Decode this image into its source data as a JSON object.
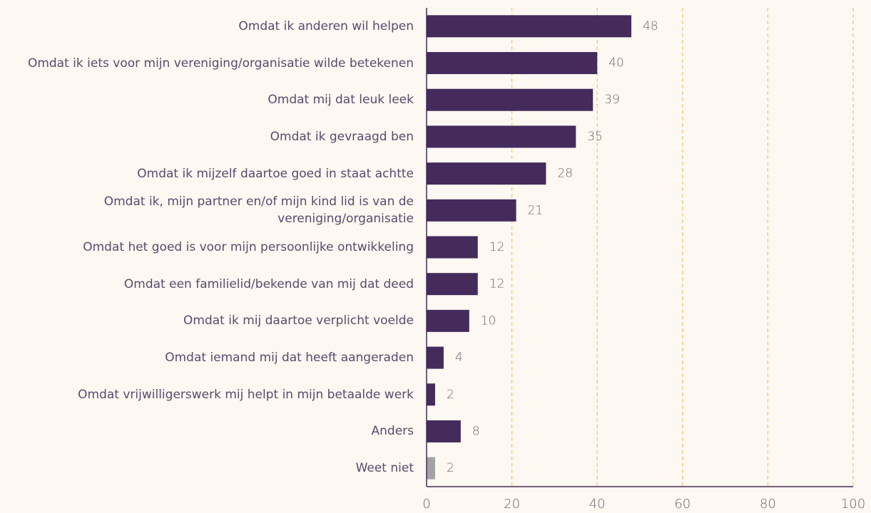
{
  "chart_data": {
    "type": "bar",
    "orientation": "horizontal",
    "categories": [
      "Omdat ik anderen wil helpen",
      "Omdat ik iets voor mijn vereniging/organisatie wilde betekenen",
      "Omdat mij dat leuk leek",
      "Omdat ik gevraagd ben",
      "Omdat ik mijzelf daartoe goed in staat achtte",
      "Omdat ik, mijn partner en/of mijn kind lid is van de vereniging/organisatie",
      "Omdat het goed is voor mijn persoonlijke ontwikkeling",
      "Omdat een familielid/bekende van mij dat deed",
      "Omdat ik mij daartoe verplicht voelde",
      "Omdat iemand mij dat heeft aangeraden",
      "Omdat vrijwilligerswerk mij helpt in mijn betaalde werk",
      "Anders",
      "Weet niet"
    ],
    "values": [
      48,
      40,
      39,
      35,
      28,
      21,
      12,
      12,
      10,
      4,
      2,
      8,
      2
    ],
    "colors": [
      "#452a5c",
      "#452a5c",
      "#452a5c",
      "#452a5c",
      "#452a5c",
      "#452a5c",
      "#452a5c",
      "#452a5c",
      "#452a5c",
      "#452a5c",
      "#452a5c",
      "#452a5c",
      "#a3a3a3"
    ],
    "xlim": [
      0,
      100
    ],
    "xticks": [
      0,
      20,
      40,
      60,
      80,
      100
    ],
    "grid": true,
    "grid_color": "#f7c37a"
  }
}
